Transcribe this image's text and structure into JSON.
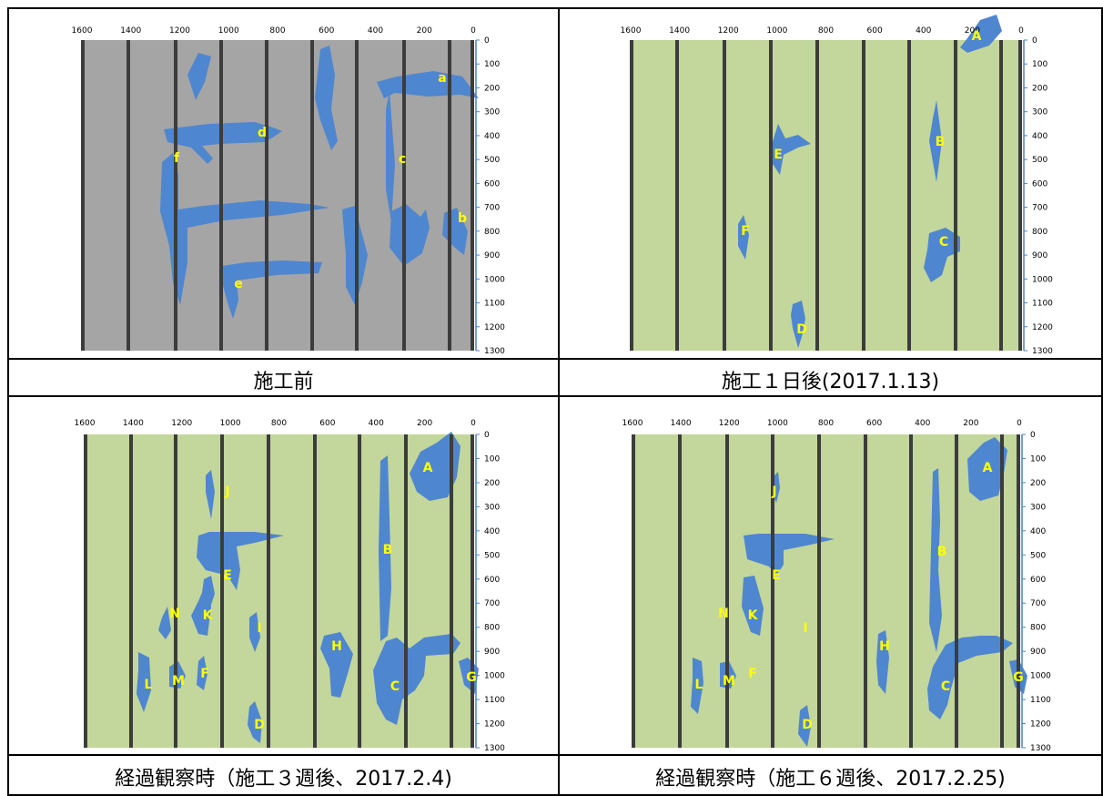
{
  "colors": {
    "before_bg": "#a5a5a5",
    "after_bg": "#c3d69b",
    "stripe": "#3c3c3c",
    "blob": "#4f86d0",
    "blob_dark": "#3c66a0",
    "axis": "#4f81bd",
    "label": "#ffff00"
  },
  "axes": {
    "x_ticks": [
      "1600",
      "1400",
      "1200",
      "1000",
      "800",
      "600",
      "400",
      "200",
      "0"
    ],
    "y_ticks": [
      "0",
      "100",
      "200",
      "300",
      "400",
      "500",
      "600",
      "700",
      "800",
      "900",
      "1000",
      "1100",
      "1200",
      "1300"
    ]
  },
  "panels": [
    {
      "caption": "施工前",
      "labels": [
        "a",
        "b",
        "c",
        "d",
        "e",
        "f"
      ]
    },
    {
      "caption": "施工１日後(2017.1.13)",
      "labels": [
        "A",
        "B",
        "C",
        "D",
        "E",
        "F"
      ]
    },
    {
      "caption": "経過観察時（施工３週後、2017.2.4)",
      "labels": [
        "A",
        "B",
        "C",
        "D",
        "E",
        "F",
        "G",
        "H",
        "I",
        "J",
        "K",
        "L",
        "M",
        "N"
      ]
    },
    {
      "caption": "経過観察時（施工６週後、2017.2.25)",
      "labels": [
        "A",
        "B",
        "C",
        "D",
        "E",
        "F",
        "G",
        "H",
        "I",
        "J",
        "K",
        "L",
        "M",
        "N"
      ]
    }
  ]
}
